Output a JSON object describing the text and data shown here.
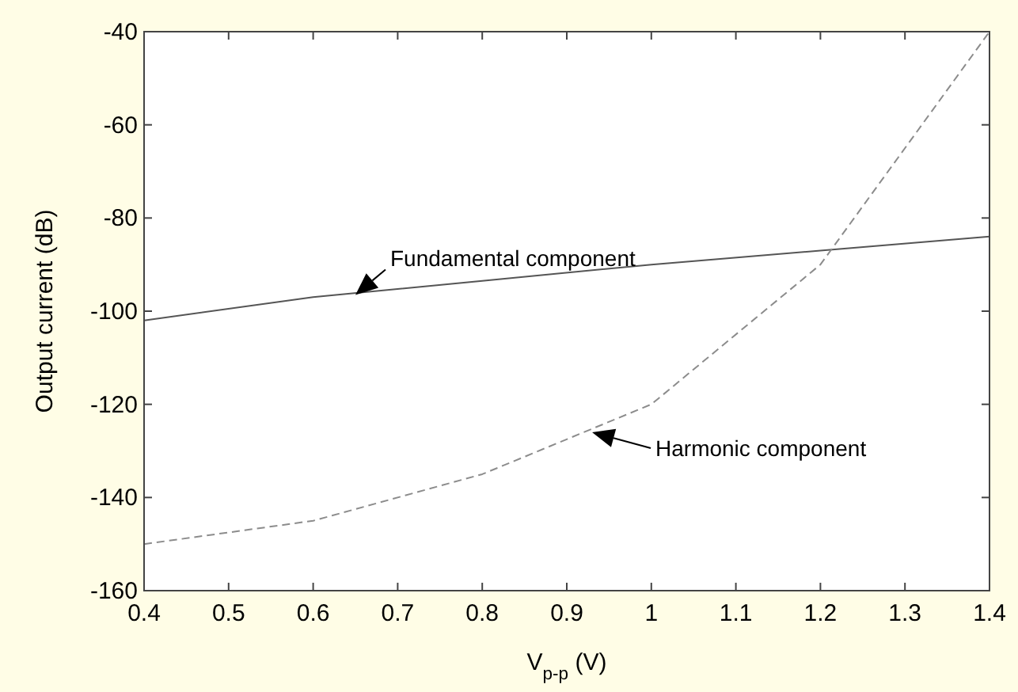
{
  "chart_data": {
    "type": "line",
    "xlabel": "V$_{p-p}$ (V)",
    "ylabel": "Output current (dB)",
    "x": [
      0.4,
      0.6,
      0.8,
      1.0,
      1.2,
      1.4
    ],
    "series": [
      {
        "color": "#555555",
        "line_style": "solid",
        "values": [
          -102,
          -97,
          -93.5,
          -90,
          -87,
          -84
        ]
      },
      {
        "color": "#8c8c8c",
        "line_style": "dashed",
        "values": [
          -150,
          -145,
          -135,
          -120,
          -90,
          -40
        ]
      }
    ],
    "xlim": [
      0.4,
      1.4
    ],
    "xticks": [
      0.4,
      0.5,
      0.6,
      0.7,
      0.8,
      0.9,
      {
        "value": 1.0,
        "label": "1"
      },
      1.1,
      1.2,
      1.3,
      1.4
    ],
    "ylim": [
      -160,
      -40
    ],
    "yticks": [
      -160,
      -140,
      -120,
      -100,
      -80,
      -60,
      -40
    ],
    "grid": false,
    "marker": "none",
    "annotations": [
      {
        "text": "Fundamental component",
        "x": 0.65,
        "y": -96.5
      },
      {
        "text": "Harmonic component",
        "x": 0.93,
        "y": -126
      }
    ]
  }
}
